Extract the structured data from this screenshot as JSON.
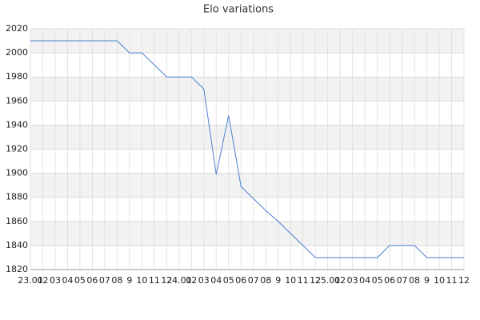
{
  "chart_data": {
    "type": "line",
    "title": "Elo variations",
    "categories": [
      "23.01",
      "02",
      "03",
      "04",
      "05",
      "06",
      "07",
      "08",
      "9",
      "10",
      "11",
      "12",
      "24.01",
      "02",
      "03",
      "04",
      "05",
      "06",
      "07",
      "08",
      "9",
      "10",
      "11",
      "12",
      "25.01",
      "02",
      "03",
      "04",
      "05",
      "06",
      "07",
      "08",
      "9",
      "10",
      "11",
      "12"
    ],
    "series": [
      {
        "name": "Elo",
        "color": "#4a7fd0",
        "values": [
          2010,
          2010,
          2010,
          2010,
          2010,
          2010,
          2010,
          2010,
          2000,
          2000,
          1990,
          1980,
          1980,
          1980,
          1970,
          1899,
          1948,
          1889,
          1879,
          1869,
          1860,
          1850,
          1840,
          1830,
          1830,
          1830,
          1830,
          1830,
          1830,
          1840,
          1840,
          1840,
          1830,
          1830,
          1830,
          1830
        ]
      }
    ],
    "ylim": [
      1820,
      2020
    ],
    "yticks": [
      1820,
      1840,
      1860,
      1880,
      1900,
      1920,
      1940,
      1960,
      1980,
      2000,
      2020
    ],
    "grid": true,
    "bands": true
  }
}
